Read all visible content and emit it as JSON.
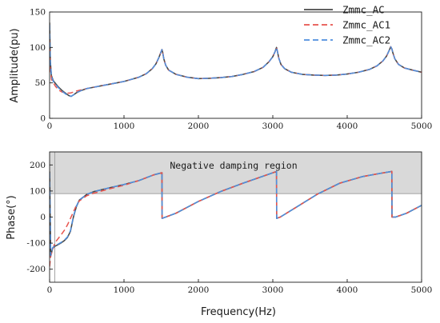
{
  "chart_data": [
    {
      "type": "line",
      "title": "",
      "xlabel": "",
      "ylabel": "Amplitude(pu)",
      "xlim": [
        0,
        5000
      ],
      "ylim": [
        0,
        150
      ],
      "xticks": [
        0,
        1000,
        2000,
        3000,
        4000,
        5000
      ],
      "yticks": [
        0,
        50,
        100,
        150
      ],
      "grid": false,
      "legend": "top-right",
      "series": [
        {
          "name": "Zmmc_AC",
          "color": "#4a4a4a",
          "dash": "solid",
          "x": [
            0,
            10,
            25,
            50,
            80,
            120,
            170,
            220,
            260,
            290,
            320,
            360,
            420,
            500,
            600,
            700,
            800,
            900,
            1000,
            1100,
            1200,
            1300,
            1380,
            1430,
            1470,
            1495,
            1510,
            1520,
            1535,
            1560,
            1600,
            1700,
            1850,
            2000,
            2150,
            2300,
            2450,
            2600,
            2750,
            2870,
            2950,
            3000,
            3030,
            3050,
            3065,
            3080,
            3110,
            3160,
            3250,
            3400,
            3550,
            3700,
            3850,
            4000,
            4150,
            4300,
            4400,
            4480,
            4530,
            4565,
            4585,
            4600,
            4615,
            4640,
            4690,
            4770,
            4880,
            5000
          ],
          "values": [
            135,
            80,
            60,
            53,
            49,
            44,
            39,
            35,
            32,
            31,
            33,
            36,
            39,
            42,
            44,
            46,
            48,
            50,
            52,
            55,
            58,
            63,
            70,
            77,
            86,
            93,
            97,
            93,
            84,
            75,
            68,
            62,
            58,
            56,
            56.5,
            57.5,
            59,
            62,
            66,
            72,
            80,
            87,
            94,
            100,
            93,
            85,
            76,
            70,
            65,
            62,
            61,
            60.5,
            61,
            62.5,
            65,
            69,
            74,
            81,
            88,
            96,
            101,
            98,
            92,
            84,
            76,
            71,
            68,
            65
          ]
        },
        {
          "name": "Zmmc_AC1",
          "color": "#e8544e",
          "dash": "dashed",
          "x": [
            0,
            10,
            25,
            50,
            80,
            120,
            170,
            220,
            260,
            290,
            320,
            360,
            420,
            500,
            600,
            700,
            800,
            900,
            1000,
            1100,
            1200,
            1300,
            1380,
            1430,
            1470,
            1495,
            1510,
            1520,
            1535,
            1560,
            1600,
            1700,
            1850,
            2000,
            2150,
            2300,
            2450,
            2600,
            2750,
            2870,
            2950,
            3000,
            3030,
            3050,
            3065,
            3080,
            3110,
            3160,
            3250,
            3400,
            3550,
            3700,
            3850,
            4000,
            4150,
            4300,
            4400,
            4480,
            4530,
            4565,
            4585,
            4600,
            4615,
            4640,
            4690,
            4770,
            4880,
            5000
          ],
          "values": [
            110,
            70,
            55,
            50,
            45,
            40,
            37,
            36,
            35.5,
            36,
            37,
            38.5,
            40,
            42,
            44,
            46,
            48,
            50,
            52,
            55,
            58,
            63,
            70,
            77,
            86,
            93,
            97,
            93,
            84,
            75,
            68,
            62,
            58,
            56,
            56.5,
            57.5,
            59,
            62,
            66,
            72,
            80,
            87,
            94,
            100,
            93,
            85,
            76,
            70,
            65,
            62,
            61,
            60.5,
            61,
            62.5,
            65,
            69,
            74,
            81,
            88,
            96,
            101,
            98,
            92,
            84,
            76,
            71,
            68,
            65
          ]
        },
        {
          "name": "Zmmc_AC2",
          "color": "#4f8fde",
          "dash": "dashed",
          "x": [
            0,
            10,
            25,
            50,
            80,
            120,
            170,
            220,
            260,
            290,
            320,
            360,
            420,
            500,
            600,
            700,
            800,
            900,
            1000,
            1100,
            1200,
            1300,
            1380,
            1430,
            1470,
            1495,
            1510,
            1520,
            1535,
            1560,
            1600,
            1700,
            1850,
            2000,
            2150,
            2300,
            2450,
            2600,
            2750,
            2870,
            2950,
            3000,
            3030,
            3050,
            3065,
            3080,
            3110,
            3160,
            3250,
            3400,
            3550,
            3700,
            3850,
            4000,
            4150,
            4300,
            4400,
            4480,
            4530,
            4565,
            4585,
            4600,
            4615,
            4640,
            4690,
            4770,
            4880,
            5000
          ],
          "values": [
            132,
            78,
            59,
            52,
            48,
            43,
            38,
            34,
            32,
            31,
            33,
            36,
            39,
            42,
            44,
            46,
            48,
            50,
            52,
            55,
            58,
            63,
            70,
            77,
            86,
            93,
            97,
            93,
            84,
            75,
            68,
            62,
            58,
            56,
            56.5,
            57.5,
            59,
            62,
            66,
            72,
            80,
            87,
            94,
            100,
            93,
            85,
            76,
            70,
            65,
            62,
            61,
            60.5,
            61,
            62.5,
            65,
            69,
            74,
            81,
            88,
            96,
            101,
            98,
            92,
            84,
            76,
            71,
            68,
            65
          ]
        }
      ]
    },
    {
      "type": "line",
      "title": "",
      "xlabel": "Frequency(Hz)",
      "ylabel": "Phase(°)",
      "xlim": [
        0,
        5000
      ],
      "ylim": [
        -250,
        250
      ],
      "xticks": [
        0,
        1000,
        2000,
        3000,
        4000,
        5000
      ],
      "yticks": [
        -200,
        -100,
        0,
        100,
        200
      ],
      "grid": false,
      "shaded_region": {
        "y_from": 90,
        "y_to": 250,
        "label": "Negative damping region",
        "color": "#d9d9d9"
      },
      "reference_lines": {
        "y": 90,
        "x": 70
      },
      "series": [
        {
          "name": "Zmmc_AC",
          "color": "#4a4a4a",
          "dash": "solid",
          "x": [
            0,
            15,
            40,
            70,
            100,
            150,
            200,
            240,
            280,
            320,
            360,
            400,
            500,
            600,
            700,
            800,
            1000,
            1200,
            1400,
            1510,
            1512,
            1560,
            1700,
            2000,
            2300,
            2600,
            2900,
            3050,
            3052,
            3100,
            3300,
            3600,
            3900,
            4200,
            4450,
            4600,
            4602,
            4650,
            4800,
            5000
          ],
          "values": [
            175,
            -150,
            -120,
            -112,
            -108,
            -100,
            -90,
            -78,
            -55,
            0,
            40,
            65,
            87,
            98,
            105,
            112,
            125,
            140,
            162,
            170,
            -5,
            0,
            15,
            60,
            98,
            130,
            160,
            175,
            -5,
            0,
            35,
            88,
            130,
            155,
            168,
            175,
            0,
            0,
            15,
            45
          ]
        },
        {
          "name": "Zmmc_AC1",
          "color": "#e8544e",
          "dash": "dashed",
          "x": [
            0,
            15,
            40,
            70,
            100,
            150,
            200,
            240,
            280,
            320,
            360,
            400,
            500,
            600,
            700,
            800,
            1000,
            1200,
            1400,
            1510,
            1512,
            1560,
            1700,
            2000,
            2300,
            2600,
            2900,
            3050,
            3052,
            3100,
            3300,
            3600,
            3900,
            4200,
            4450,
            4600,
            4602,
            4650,
            4800,
            5000
          ],
          "values": [
            -190,
            -150,
            -125,
            -100,
            -88,
            -70,
            -50,
            -30,
            -5,
            20,
            45,
            62,
            82,
            92,
            100,
            108,
            122,
            140,
            162,
            170,
            -5,
            0,
            15,
            60,
            98,
            130,
            160,
            175,
            -5,
            0,
            35,
            88,
            130,
            155,
            168,
            175,
            0,
            0,
            15,
            45
          ]
        },
        {
          "name": "Zmmc_AC2",
          "color": "#4f8fde",
          "dash": "dashed",
          "x": [
            0,
            15,
            40,
            70,
            100,
            150,
            200,
            240,
            280,
            320,
            360,
            400,
            500,
            600,
            700,
            800,
            1000,
            1200,
            1400,
            1510,
            1512,
            1560,
            1700,
            2000,
            2300,
            2600,
            2900,
            3050,
            3052,
            3100,
            3300,
            3600,
            3900,
            4200,
            4450,
            4600,
            4602,
            4650,
            4800,
            5000
          ],
          "values": [
            170,
            -148,
            -118,
            -110,
            -106,
            -98,
            -88,
            -76,
            -52,
            2,
            42,
            66,
            87,
            98,
            105,
            112,
            125,
            140,
            162,
            170,
            -5,
            0,
            15,
            60,
            98,
            130,
            160,
            175,
            -5,
            0,
            35,
            88,
            130,
            155,
            168,
            175,
            0,
            0,
            15,
            45
          ]
        }
      ]
    }
  ]
}
